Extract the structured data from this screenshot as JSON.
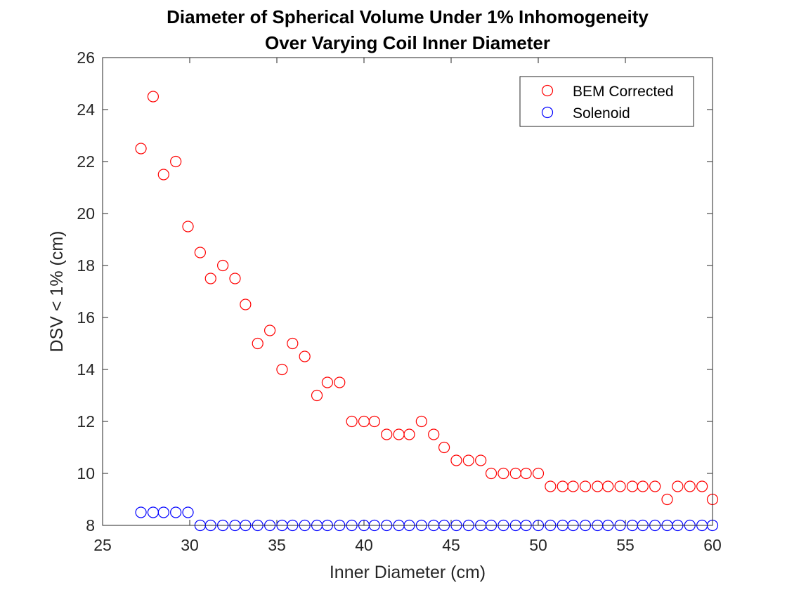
{
  "chart_data": {
    "type": "scatter",
    "title": [
      "Diameter of Spherical Volume Under 1% Inhomogeneity",
      "Over Varying Coil Inner Diameter"
    ],
    "xlabel": "Inner Diameter (cm)",
    "ylabel": "DSV < 1% (cm)",
    "xlim": [
      25,
      60
    ],
    "ylim": [
      8,
      26
    ],
    "xticks": [
      25,
      30,
      35,
      40,
      45,
      50,
      55,
      60
    ],
    "yticks": [
      8,
      10,
      12,
      14,
      16,
      18,
      20,
      22,
      24,
      26
    ],
    "legend_position": "top-right",
    "series": [
      {
        "name": "BEM Corrected",
        "color": "#ff0000",
        "marker": "circle-open",
        "x": [
          27.2,
          27.9,
          28.5,
          29.2,
          29.9,
          30.6,
          31.2,
          31.9,
          32.6,
          33.2,
          33.9,
          34.6,
          35.3,
          35.9,
          36.6,
          37.3,
          37.9,
          38.6,
          39.3,
          40.0,
          40.6,
          41.3,
          42.0,
          42.6,
          43.3,
          44.0,
          44.6,
          45.3,
          46.0,
          46.7,
          47.3,
          48.0,
          48.7,
          49.3,
          50.0,
          50.7,
          51.4,
          52.0,
          52.7,
          53.4,
          54.0,
          54.7,
          55.4,
          56.0,
          56.7,
          57.4,
          58.0,
          58.7,
          59.4,
          60.0
        ],
        "y": [
          22.5,
          24.5,
          21.5,
          22.0,
          19.5,
          18.5,
          17.5,
          18.0,
          17.5,
          16.5,
          15.0,
          15.5,
          14.0,
          15.0,
          14.5,
          13.0,
          13.5,
          13.5,
          12.0,
          12.0,
          12.0,
          11.5,
          11.5,
          11.5,
          12.0,
          11.5,
          11.0,
          10.5,
          10.5,
          10.5,
          10.0,
          10.0,
          10.0,
          10.0,
          10.0,
          9.5,
          9.5,
          9.5,
          9.5,
          9.5,
          9.5,
          9.5,
          9.5,
          9.5,
          9.5,
          9.0,
          9.5,
          9.5,
          9.5,
          9.0
        ]
      },
      {
        "name": "Solenoid",
        "color": "#0000ff",
        "marker": "circle-open",
        "x": [
          27.2,
          27.9,
          28.5,
          29.2,
          29.9,
          30.6,
          31.2,
          31.9,
          32.6,
          33.2,
          33.9,
          34.6,
          35.3,
          35.9,
          36.6,
          37.3,
          37.9,
          38.6,
          39.3,
          40.0,
          40.6,
          41.3,
          42.0,
          42.6,
          43.3,
          44.0,
          44.6,
          45.3,
          46.0,
          46.7,
          47.3,
          48.0,
          48.7,
          49.3,
          50.0,
          50.7,
          51.4,
          52.0,
          52.7,
          53.4,
          54.0,
          54.7,
          55.4,
          56.0,
          56.7,
          57.4,
          58.0,
          58.7,
          59.4,
          60.0
        ],
        "y": [
          8.5,
          8.5,
          8.5,
          8.5,
          8.5,
          8.0,
          8.0,
          8.0,
          8.0,
          8.0,
          8.0,
          8.0,
          8.0,
          8.0,
          8.0,
          8.0,
          8.0,
          8.0,
          8.0,
          8.0,
          8.0,
          8.0,
          8.0,
          8.0,
          8.0,
          8.0,
          8.0,
          8.0,
          8.0,
          8.0,
          8.0,
          8.0,
          8.0,
          8.0,
          8.0,
          8.0,
          8.0,
          8.0,
          8.0,
          8.0,
          8.0,
          8.0,
          8.0,
          8.0,
          8.0,
          8.0,
          8.0,
          8.0,
          8.0,
          8.0
        ]
      }
    ]
  }
}
